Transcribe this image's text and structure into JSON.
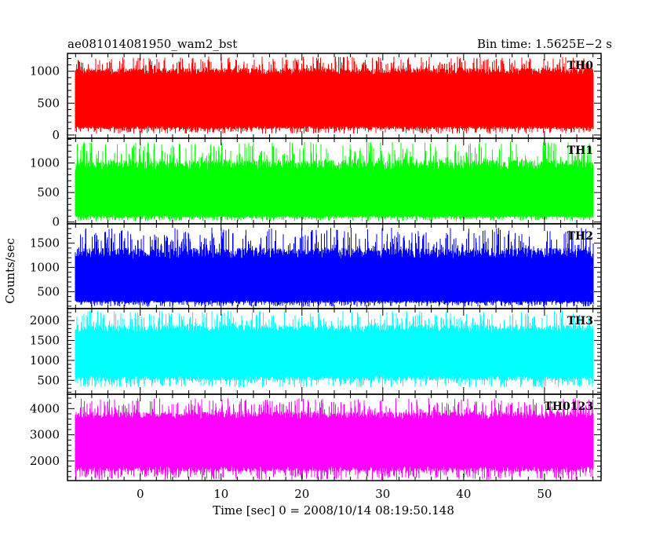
{
  "header": {
    "title": "ae081014081950_wam2_bst",
    "bin_time": "Bin time: 1.5625E−2 s"
  },
  "chart_data": {
    "type": "line",
    "title": "ae081014081950_wam2_bst",
    "xlabel": "Time [sec] 0 = 2008/10/14 08:19:50.148",
    "ylabel": "Counts/sec",
    "xlim": [
      -9,
      57
    ],
    "x_ticks": [
      0,
      10,
      20,
      30,
      40,
      50
    ],
    "x_tick_labels": [
      "0",
      "10",
      "20",
      "30",
      "40",
      "50"
    ],
    "data_x_range": [
      -8,
      56
    ],
    "panels": [
      {
        "name": "TH0",
        "color": "#ff0000",
        "ylim": [
          -50,
          1280
        ],
        "yticks": [
          0,
          500,
          1000
        ],
        "ytick_labels": [
          "0",
          "500",
          "1000"
        ],
        "band": {
          "low": 140,
          "high": 950,
          "peak_min": 20,
          "peak_max": 1230,
          "mean": 560
        }
      },
      {
        "name": "TH1",
        "color": "#00ff00",
        "ylim": [
          -30,
          1420
        ],
        "yticks": [
          0,
          500,
          1000
        ],
        "ytick_labels": [
          "0",
          "500",
          "1000"
        ],
        "band": {
          "low": 110,
          "high": 880,
          "peak_min": 15,
          "peak_max": 1360,
          "mean": 500
        }
      },
      {
        "name": "TH2",
        "color": "#0000ff",
        "ylim": [
          150,
          1900
        ],
        "yticks": [
          500,
          1000,
          1500
        ],
        "ytick_labels": [
          "500",
          "1000",
          "1500"
        ],
        "band": {
          "low": 320,
          "high": 1180,
          "peak_min": 190,
          "peak_max": 1820,
          "mean": 750
        }
      },
      {
        "name": "TH3",
        "color": "#00ffff",
        "ylim": [
          150,
          2300
        ],
        "yticks": [
          500,
          1000,
          1500,
          2000
        ],
        "ytick_labels": [
          "500",
          "1000",
          "1500",
          "2000"
        ],
        "band": {
          "low": 620,
          "high": 1700,
          "peak_min": 320,
          "peak_max": 2250,
          "mean": 1160
        }
      },
      {
        "name": "TH0123",
        "color": "#ff00ff",
        "ylim": [
          1250,
          4550
        ],
        "yticks": [
          2000,
          3000,
          4000
        ],
        "ytick_labels": [
          "2000",
          "3000",
          "4000"
        ],
        "band": {
          "low": 1800,
          "high": 3600,
          "peak_min": 1280,
          "peak_max": 4400,
          "mean": 2700
        }
      }
    ]
  }
}
